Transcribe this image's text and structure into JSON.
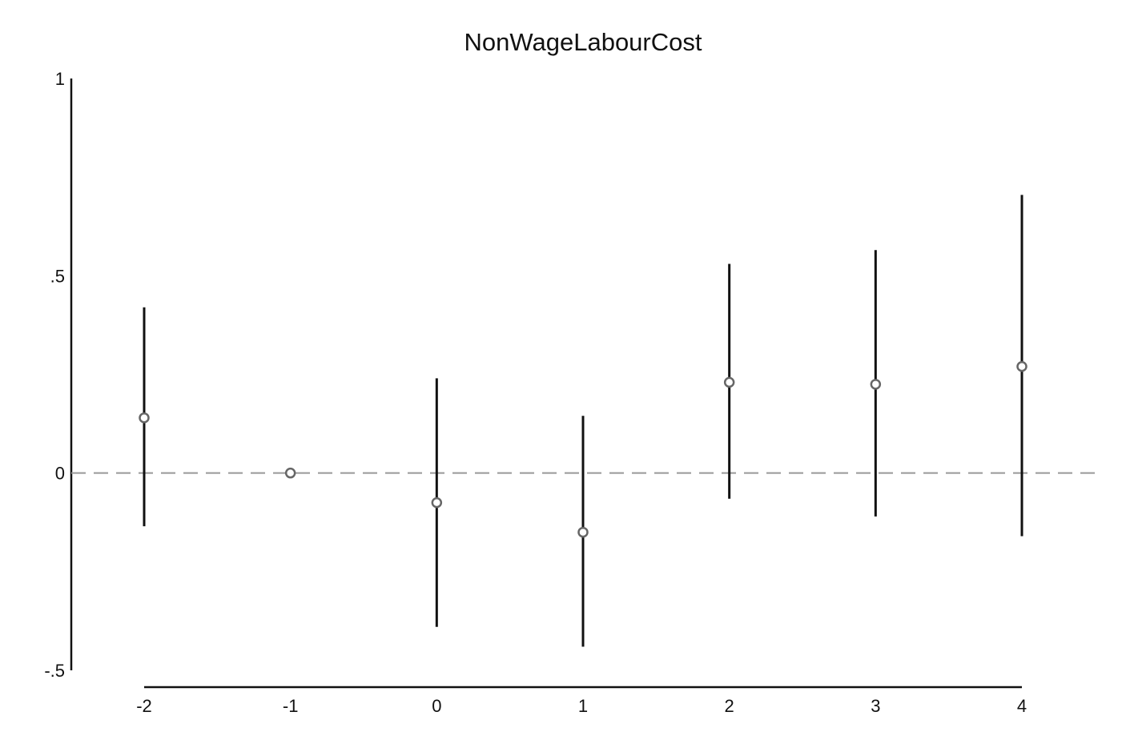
{
  "chart_data": {
    "type": "scatter",
    "title": "NonWageLabourCost",
    "xlabel": "",
    "ylabel": "",
    "x": [
      -2,
      -1,
      0,
      1,
      2,
      3,
      4
    ],
    "series": [
      {
        "estimate": [
          0.14,
          0.0,
          -0.075,
          -0.15,
          0.23,
          0.225,
          0.27
        ],
        "ci_low": [
          -0.135,
          0.0,
          -0.39,
          -0.44,
          -0.065,
          -0.11,
          -0.16
        ],
        "ci_high": [
          0.42,
          0.0,
          0.24,
          0.145,
          0.53,
          0.565,
          0.705
        ]
      }
    ],
    "xlim": [
      -2,
      4
    ],
    "ylim": [
      -0.5,
      1
    ],
    "x_ticks": [
      {
        "value": -2,
        "label": "-2"
      },
      {
        "value": -1,
        "label": "-1"
      },
      {
        "value": 0,
        "label": "0"
      },
      {
        "value": 1,
        "label": "1"
      },
      {
        "value": 2,
        "label": "2"
      },
      {
        "value": 3,
        "label": "3"
      },
      {
        "value": 4,
        "label": "4"
      }
    ],
    "y_ticks": [
      {
        "value": -0.5,
        "label": "-.5"
      },
      {
        "value": 0,
        "label": "0"
      },
      {
        "value": 0.5,
        "label": ".5"
      },
      {
        "value": 1,
        "label": "1"
      }
    ],
    "reference_line": {
      "value": 0,
      "style": "dashed"
    },
    "grid": false,
    "legend": "none",
    "colors": {
      "axis": "#111111",
      "ci": "#111111",
      "point_edge": "#666666",
      "reference_line": "#999999"
    }
  }
}
